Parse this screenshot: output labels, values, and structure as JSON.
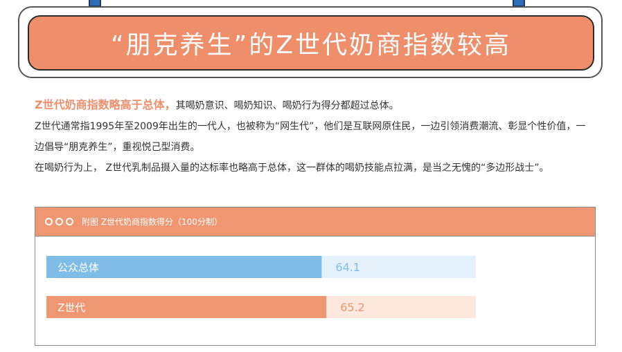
{
  "title": "“朋克养生”的Z世代奶商指数较高",
  "intro": {
    "highlight": "Z世代奶商指数略高于总体，",
    "line1_rest": "其喝奶意识、喝奶知识、喝奶行为得分都超过总体。",
    "paragraph2": "Z世代通常指1995年至2009年出生的一代人，也被称为“网生代”，他们是互联网原住民，一边引领消费潮流、彰显个性价值，一边倡导“朋克养生”，重视悦己型消费。",
    "paragraph3": "在喝奶行为上， Z世代乳制品摄入量的达标率也略高于总体，这一群体的喝奶技能点拉满，是当之无愧的“多边形战士”。"
  },
  "chart_data": {
    "type": "bar",
    "orientation": "horizontal",
    "caption": "附图 Z世代奶商指数得分（100分制）",
    "categories": [
      "公众总体",
      "Z世代"
    ],
    "values": [
      64.1,
      65.2
    ],
    "value_labels": [
      "64.1",
      "65.2"
    ],
    "xlim": [
      0,
      100
    ],
    "bar_colors": [
      "#7fbde6",
      "#ef9672"
    ],
    "track_colors": [
      "#e4f1fa",
      "#fde8de"
    ],
    "value_label_colors": [
      "#7fbde6",
      "#ef9672"
    ],
    "grid": false
  }
}
